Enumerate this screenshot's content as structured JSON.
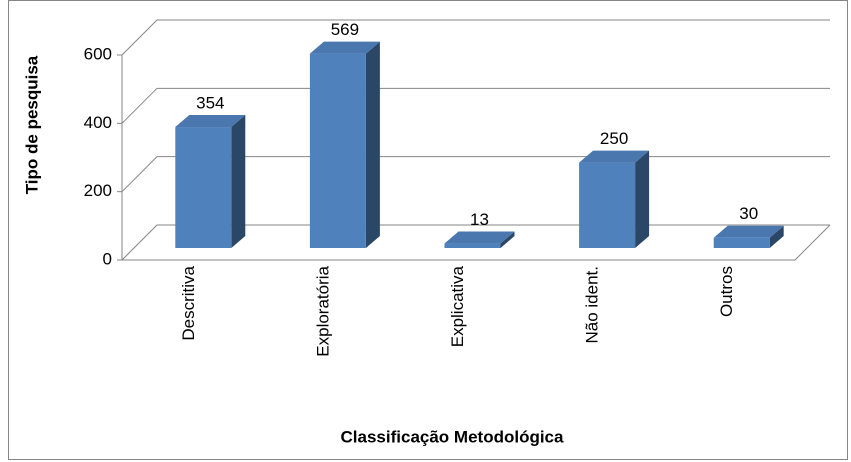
{
  "chart_data": {
    "type": "bar3d",
    "categories": [
      "Descritiva",
      "Exploratória",
      "Explicativa",
      "Não ident.",
      "Outros"
    ],
    "values": [
      354,
      569,
      13,
      250,
      30
    ],
    "color": "#4f81bd",
    "ylim": [
      0,
      600
    ],
    "yticks": [
      0,
      200,
      400,
      600
    ],
    "grid": true,
    "y_label": "Tipo de pesquisa",
    "x_label": "Classificação Metodológica"
  }
}
